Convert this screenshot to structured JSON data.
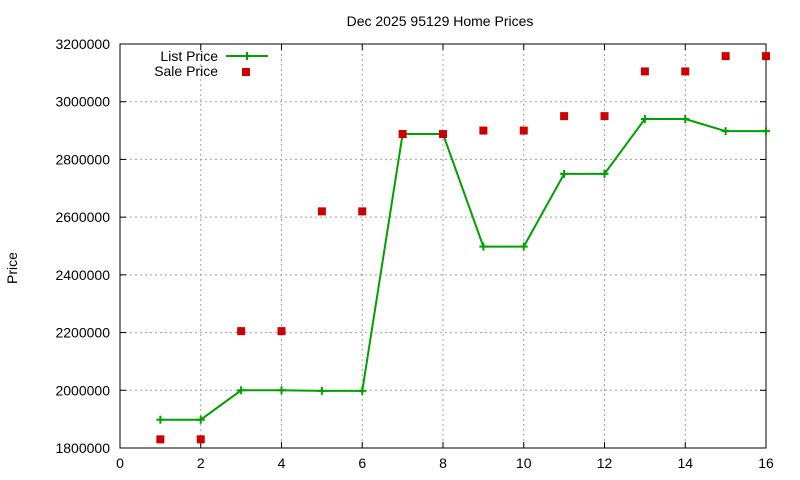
{
  "chart_data": {
    "type": "line",
    "title": "Dec 2025 95129 Home Prices",
    "xlabel": "",
    "ylabel": "Price",
    "xlim": [
      0,
      16
    ],
    "ylim": [
      1800000,
      3200000
    ],
    "xticks": [
      0,
      2,
      4,
      6,
      8,
      10,
      12,
      14,
      16
    ],
    "yticks": [
      1800000,
      2000000,
      2200000,
      2400000,
      2600000,
      2800000,
      3000000,
      3200000
    ],
    "grid": true,
    "legend_position": "top-left",
    "series": [
      {
        "name": "List Price",
        "style": "line+plus",
        "color": "#00a000",
        "x": [
          1,
          2,
          3,
          4,
          5,
          6,
          7,
          8,
          9,
          10,
          11,
          12,
          13,
          14,
          15,
          16
        ],
        "y": [
          1898000,
          1898000,
          2000000,
          2000000,
          1998000,
          1998000,
          2888000,
          2888000,
          2498000,
          2498000,
          2750000,
          2750000,
          2940000,
          2940000,
          2898000,
          2898000
        ]
      },
      {
        "name": "Sale Price",
        "style": "points-square",
        "color": "#cc0000",
        "x": [
          1,
          2,
          3,
          4,
          5,
          6,
          7,
          8,
          9,
          10,
          11,
          12,
          13,
          14,
          15,
          16
        ],
        "y": [
          1830000,
          1830000,
          2205000,
          2205000,
          2620000,
          2620000,
          2888000,
          2888000,
          2900000,
          2900000,
          2950000,
          2950000,
          3105000,
          3105000,
          3158000,
          3158000
        ]
      }
    ]
  }
}
